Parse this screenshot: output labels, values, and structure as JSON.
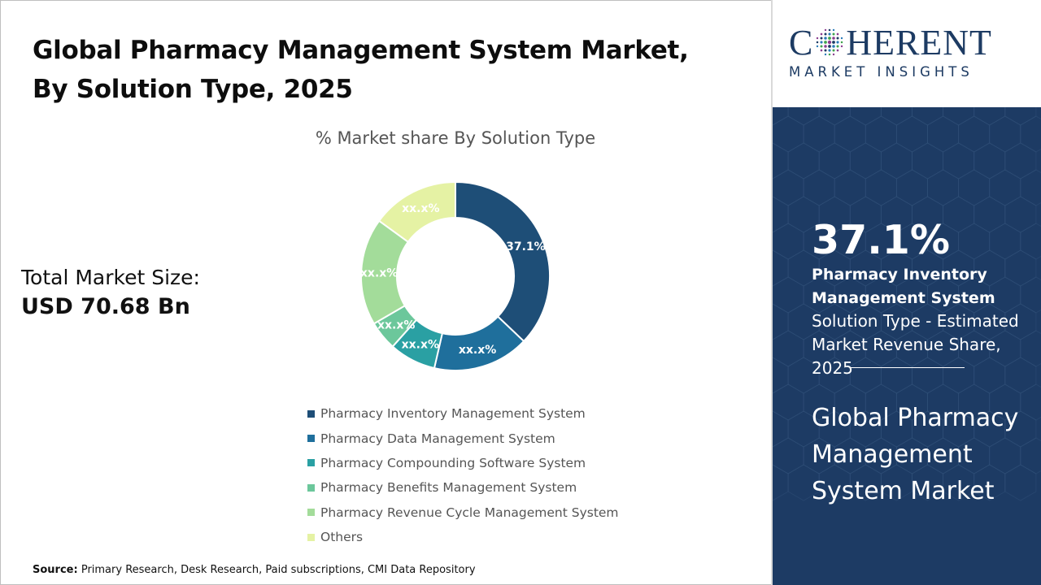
{
  "header": {
    "title_line1": "Global Pharmacy Management System Market,",
    "title_line2": "By Solution Type, 2025"
  },
  "market_size": {
    "label": "Total Market Size:",
    "value": "USD 70.68 Bn"
  },
  "chart_data": {
    "type": "pie",
    "variant": "donut",
    "title": "% Market share By Solution Type",
    "legend_position": "bottom",
    "categories": [
      "Pharmacy Inventory Management System",
      "Pharmacy Data Management System",
      "Pharmacy Compounding Software System",
      "Pharmacy Benefits Management System",
      "Pharmacy Revenue Cycle Management System",
      "Others"
    ],
    "values": [
      37.1,
      16.5,
      8.0,
      5.0,
      18.4,
      15.0
    ],
    "data_labels": [
      "37.1%",
      "xx.x%",
      "xx.x%",
      "xx.x%",
      "xx.x%",
      "xx.x%"
    ],
    "colors": [
      "#1e4e77",
      "#1f6f9c",
      "#2aa0a3",
      "#6cc79b",
      "#a3dc9a",
      "#e5f2a4"
    ]
  },
  "source": {
    "label": "Source:",
    "text": "Primary Research, Desk Research, Paid subscriptions, CMI Data Repository"
  },
  "brand": {
    "name_part1": "C",
    "name_part2": "HERENT",
    "tagline": "MARKET INSIGHTS",
    "color": "#1d3b63"
  },
  "highlight": {
    "value": "37.1%",
    "segment_name": "Pharmacy Inventory Management System",
    "description": "Solution Type - Estimated Market Revenue Share, 2025",
    "market_name": "Global Pharmacy Management System Market",
    "panel_color": "#1d3b64"
  }
}
